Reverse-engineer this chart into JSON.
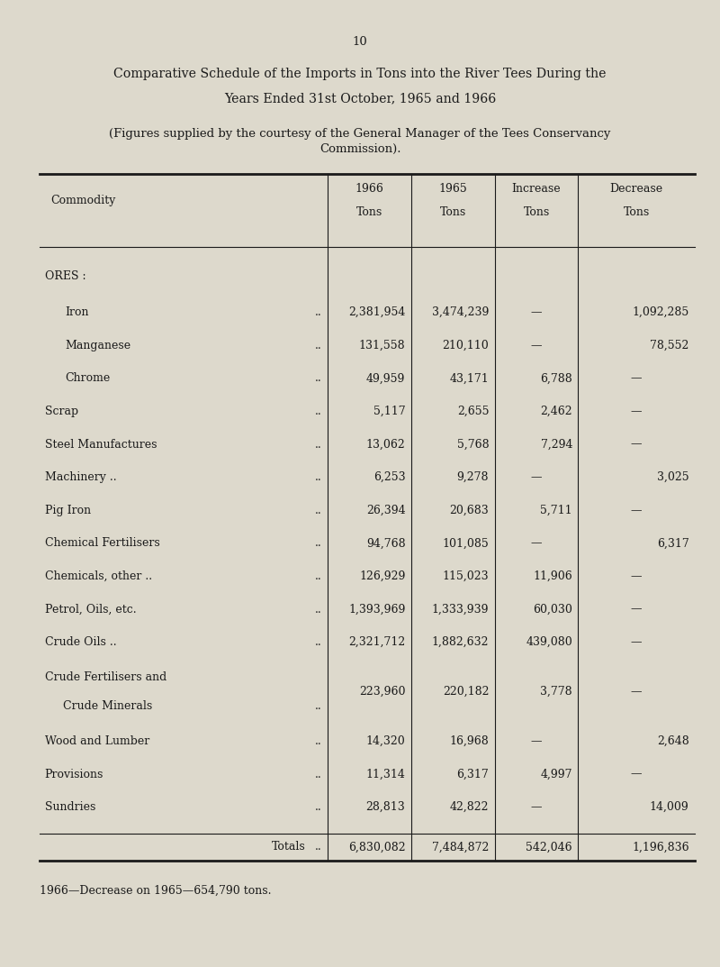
{
  "page_number": "10",
  "title_line1": "Comparative Schedule of the Imports in Tons into the River Tees During the",
  "title_line2": "Years Ended 31st October, 1965 and 1966",
  "subtitle_line1": "(Figures supplied by the courtesy of the General Manager of the Tees Conservancy",
  "subtitle_line2": "Commission).",
  "col_headers_top": [
    "",
    "1966",
    "1965",
    "Increase",
    "Decrease"
  ],
  "col_headers_bot": [
    "Commodity",
    "Tons",
    "Tons",
    "Tons",
    "Tons"
  ],
  "rows": [
    {
      "commodity": "ORES :",
      "dots": "",
      "val1966": "",
      "val1965": "",
      "increase": "",
      "decrease": "",
      "indent": 0,
      "ores_header": true
    },
    {
      "commodity": "Iron",
      "dots": "..",
      "val1966": "2,381,954",
      "val1965": "3,474,239",
      "increase": "—",
      "decrease": "1,092,285",
      "indent": 1,
      "subdots": ".."
    },
    {
      "commodity": "Manganese",
      "dots": "..",
      "val1966": "131,558",
      "val1965": "210,110",
      "increase": "—",
      "decrease": "78,552",
      "indent": 1,
      "subdots": ".."
    },
    {
      "commodity": "Chrome",
      "dots": "..",
      "val1966": "49,959",
      "val1965": "43,171",
      "increase": "6,788",
      "decrease": "—",
      "indent": 1,
      "subdots": ".."
    },
    {
      "commodity": "Scrap",
      "dots": "..",
      "val1966": "5,117",
      "val1965": "2,655",
      "increase": "2,462",
      "decrease": "—",
      "indent": 0,
      "subdots": ".."
    },
    {
      "commodity": "Steel Manufactures",
      "dots": "..",
      "val1966": "13,062",
      "val1965": "5,768",
      "increase": "7,294",
      "decrease": "—",
      "indent": 0
    },
    {
      "commodity": "Machinery ..",
      "dots": "..",
      "val1966": "6,253",
      "val1965": "9,278",
      "increase": "—",
      "decrease": "3,025",
      "indent": 0,
      "subdots": ".."
    },
    {
      "commodity": "Pig Iron",
      "dots": "..",
      "val1966": "26,394",
      "val1965": "20,683",
      "increase": "5,711",
      "decrease": "—",
      "indent": 0,
      "subdots": ".."
    },
    {
      "commodity": "Chemical Fertilisers",
      "dots": "..",
      "val1966": "94,768",
      "val1965": "101,085",
      "increase": "—",
      "decrease": "6,317",
      "indent": 0
    },
    {
      "commodity": "Chemicals, other ..",
      "dots": "..",
      "val1966": "126,929",
      "val1965": "115,023",
      "increase": "11,906",
      "decrease": "—",
      "indent": 0
    },
    {
      "commodity": "Petrol, Oils, etc.",
      "dots": "..",
      "val1966": "1,393,969",
      "val1965": "1,333,939",
      "increase": "60,030",
      "decrease": "—",
      "indent": 0,
      "subdots": ".."
    },
    {
      "commodity": "Crude Oils ..",
      "dots": "..",
      "val1966": "2,321,712",
      "val1965": "1,882,632",
      "increase": "439,080",
      "decrease": "—",
      "indent": 0,
      "subdots": ".."
    },
    {
      "commodity": "Crude Fertilisers and",
      "commodity2": "Crude Minerals",
      "dots": "..",
      "val1966": "223,960",
      "val1965": "220,182",
      "increase": "3,778",
      "decrease": "—",
      "indent": 0,
      "two_line": true
    },
    {
      "commodity": "Wood and Lumber",
      "dots": "..",
      "val1966": "14,320",
      "val1965": "16,968",
      "increase": "—",
      "decrease": "2,648",
      "indent": 0
    },
    {
      "commodity": "Provisions",
      "dots": "..",
      "val1966": "11,314",
      "val1965": "6,317",
      "increase": "4,997",
      "decrease": "—",
      "indent": 0,
      "subdots": ".."
    },
    {
      "commodity": "Sundries",
      "dots": "..",
      "val1966": "28,813",
      "val1965": "42,822",
      "increase": "—",
      "decrease": "14,009",
      "indent": 0,
      "subdots": ".."
    }
  ],
  "totals": {
    "label": "Totals",
    "dots": "..",
    "val1966": "6,830,082",
    "val1965": "7,484,872",
    "increase": "542,046",
    "decrease": "1,196,836"
  },
  "footnote": "1966—Decrease on 1965—654,790 tons.",
  "bg_color": "#ddd9cc",
  "text_color": "#1a1a1a",
  "font_size": 9.0,
  "title_font_size": 10.2,
  "subtitle_font_size": 9.5
}
